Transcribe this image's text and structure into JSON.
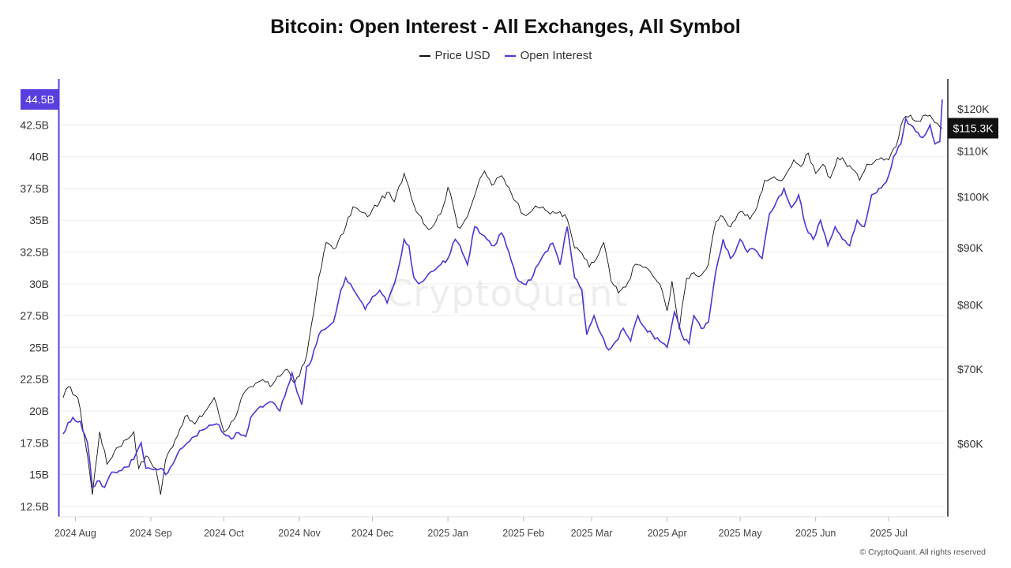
{
  "colors": {
    "price": "#111111",
    "oi": "#4f35d9",
    "grid": "#eeeeee",
    "badge_right": "#111111",
    "badge_left": "#5a3fe0"
  },
  "footer": "© CryptoQuant. All rights reserved",
  "watermark": "CryptoQuant",
  "chart_data": {
    "type": "line",
    "title": "Bitcoin: Open Interest - All Exchanges, All Symbol",
    "legend": {
      "placement": "top-center",
      "entries": [
        "Price USD",
        "Open Interest"
      ]
    },
    "grid": true,
    "x_tick_labels": [
      "2024 Aug",
      "2024 Sep",
      "2024 Oct",
      "2024 Nov",
      "2024 Dec",
      "2025 Jan",
      "2025 Feb",
      "2025 Mar",
      "2025 Apr",
      "2025 May",
      "2025 Jun",
      "2025 Jul"
    ],
    "x_tick_index": [
      5,
      36,
      66,
      97,
      127,
      158,
      189,
      217,
      248,
      278,
      309,
      339
    ],
    "y_left": {
      "label": "",
      "unit": "B",
      "ylim": [
        12.0,
        45.0
      ],
      "ticks": [
        "12.5B",
        "15B",
        "17.5B",
        "20B",
        "22.5B",
        "25B",
        "27.5B",
        "30B",
        "32.5B",
        "35B",
        "37.5B",
        "40B",
        "42.5B"
      ],
      "tick_values": [
        12.5,
        15,
        17.5,
        20,
        22.5,
        25,
        27.5,
        30,
        32.5,
        35,
        37.5,
        40,
        42.5
      ],
      "current_badge": "44.5B"
    },
    "y_right": {
      "label": "",
      "scale": "log",
      "ylim": [
        52000,
        124000
      ],
      "ticks": [
        "$60K",
        "$70K",
        "$80K",
        "$90K",
        "$100K",
        "$110K",
        "$120K"
      ],
      "tick_values": [
        60000,
        70000,
        80000,
        90000,
        100000,
        110000,
        120000
      ],
      "current_badge": "$115.3K"
    },
    "series": [
      {
        "name": "Price USD",
        "axis": "right",
        "anchors": [
          [
            0,
            66000
          ],
          [
            2,
            67500
          ],
          [
            6,
            66000
          ],
          [
            10,
            58500
          ],
          [
            12,
            54000
          ],
          [
            15,
            61500
          ],
          [
            18,
            57500
          ],
          [
            22,
            59500
          ],
          [
            26,
            60500
          ],
          [
            29,
            61500
          ],
          [
            31,
            57000
          ],
          [
            34,
            58500
          ],
          [
            38,
            57000
          ],
          [
            40,
            54000
          ],
          [
            42,
            58000
          ],
          [
            46,
            60500
          ],
          [
            50,
            63500
          ],
          [
            54,
            62500
          ],
          [
            58,
            64000
          ],
          [
            62,
            66000
          ],
          [
            66,
            61500
          ],
          [
            70,
            63000
          ],
          [
            74,
            66500
          ],
          [
            78,
            67500
          ],
          [
            82,
            68500
          ],
          [
            85,
            67500
          ],
          [
            88,
            69000
          ],
          [
            92,
            70000
          ],
          [
            95,
            68000
          ],
          [
            97,
            69000
          ],
          [
            100,
            72000
          ],
          [
            104,
            82000
          ],
          [
            108,
            91000
          ],
          [
            112,
            90000
          ],
          [
            116,
            94000
          ],
          [
            119,
            98000
          ],
          [
            122,
            97000
          ],
          [
            125,
            96000
          ],
          [
            127,
            97500
          ],
          [
            130,
            99000
          ],
          [
            133,
            101000
          ],
          [
            136,
            99000
          ],
          [
            140,
            105000
          ],
          [
            142,
            102000
          ],
          [
            145,
            97000
          ],
          [
            147,
            96000
          ],
          [
            150,
            93500
          ],
          [
            153,
            95000
          ],
          [
            156,
            98000
          ],
          [
            158,
            102000
          ],
          [
            160,
            98500
          ],
          [
            162,
            94000
          ],
          [
            164,
            94500
          ],
          [
            167,
            97500
          ],
          [
            170,
            102000
          ],
          [
            173,
            105500
          ],
          [
            176,
            102500
          ],
          [
            180,
            104500
          ],
          [
            183,
            102000
          ],
          [
            186,
            99000
          ],
          [
            189,
            96500
          ],
          [
            193,
            97500
          ],
          [
            197,
            98000
          ],
          [
            200,
            96500
          ],
          [
            204,
            97000
          ],
          [
            207,
            95500
          ],
          [
            210,
            90000
          ],
          [
            213,
            89000
          ],
          [
            216,
            86500
          ],
          [
            219,
            88000
          ],
          [
            222,
            91000
          ],
          [
            225,
            84000
          ],
          [
            228,
            82000
          ],
          [
            231,
            83000
          ],
          [
            235,
            87000
          ],
          [
            239,
            86500
          ],
          [
            242,
            85000
          ],
          [
            245,
            83500
          ],
          [
            248,
            79000
          ],
          [
            250,
            84000
          ],
          [
            253,
            76000
          ],
          [
            256,
            84500
          ],
          [
            259,
            85500
          ],
          [
            262,
            85000
          ],
          [
            265,
            87000
          ],
          [
            268,
            95000
          ],
          [
            271,
            96000
          ],
          [
            274,
            94000
          ],
          [
            277,
            96500
          ],
          [
            279,
            97000
          ],
          [
            282,
            95500
          ],
          [
            285,
            98000
          ],
          [
            288,
            103500
          ],
          [
            291,
            104000
          ],
          [
            294,
            103500
          ],
          [
            297,
            105000
          ],
          [
            300,
            108000
          ],
          [
            303,
            106500
          ],
          [
            306,
            109500
          ],
          [
            309,
            105000
          ],
          [
            312,
            107000
          ],
          [
            315,
            104000
          ],
          [
            318,
            108500
          ],
          [
            321,
            107500
          ],
          [
            324,
            106000
          ],
          [
            327,
            103500
          ],
          [
            330,
            107000
          ],
          [
            333,
            107500
          ],
          [
            336,
            108500
          ],
          [
            339,
            108000
          ],
          [
            342,
            111000
          ],
          [
            345,
            117500
          ],
          [
            348,
            118500
          ],
          [
            351,
            117000
          ],
          [
            354,
            118500
          ],
          [
            357,
            117500
          ],
          [
            359,
            116500
          ],
          [
            361,
            115300
          ]
        ]
      },
      {
        "name": "Open Interest",
        "axis": "left",
        "anchors": [
          [
            0,
            18.2
          ],
          [
            2,
            19.1
          ],
          [
            4,
            19.5
          ],
          [
            7,
            19.2
          ],
          [
            10,
            17.5
          ],
          [
            12,
            14.0
          ],
          [
            14,
            14.5
          ],
          [
            17,
            14.0
          ],
          [
            20,
            15.2
          ],
          [
            23,
            15.3
          ],
          [
            26,
            15.6
          ],
          [
            29,
            16.2
          ],
          [
            32,
            17.5
          ],
          [
            34,
            15.5
          ],
          [
            37,
            15.4
          ],
          [
            40,
            15.5
          ],
          [
            42,
            15.0
          ],
          [
            45,
            15.8
          ],
          [
            48,
            17.0
          ],
          [
            51,
            17.5
          ],
          [
            54,
            18.0
          ],
          [
            57,
            18.5
          ],
          [
            60,
            18.9
          ],
          [
            63,
            19.0
          ],
          [
            66,
            18.2
          ],
          [
            69,
            17.8
          ],
          [
            72,
            18.3
          ],
          [
            75,
            18.0
          ],
          [
            77,
            19.5
          ],
          [
            80,
            20.2
          ],
          [
            83,
            20.5
          ],
          [
            86,
            20.7
          ],
          [
            89,
            20.0
          ],
          [
            92,
            21.8
          ],
          [
            94,
            23.0
          ],
          [
            96,
            21.5
          ],
          [
            98,
            20.5
          ],
          [
            100,
            23.5
          ],
          [
            102,
            24.0
          ],
          [
            105,
            26.0
          ],
          [
            108,
            26.5
          ],
          [
            111,
            27.0
          ],
          [
            114,
            29.5
          ],
          [
            116,
            30.5
          ],
          [
            118,
            30.0
          ],
          [
            121,
            29.0
          ],
          [
            124,
            28.0
          ],
          [
            127,
            29.0
          ],
          [
            130,
            29.5
          ],
          [
            133,
            28.5
          ],
          [
            136,
            30.0
          ],
          [
            138,
            31.5
          ],
          [
            140,
            33.5
          ],
          [
            142,
            33.0
          ],
          [
            144,
            30.5
          ],
          [
            146,
            30.0
          ],
          [
            149,
            30.5
          ],
          [
            152,
            31.0
          ],
          [
            155,
            31.5
          ],
          [
            158,
            32.0
          ],
          [
            161,
            33.5
          ],
          [
            163,
            33.0
          ],
          [
            166,
            31.5
          ],
          [
            169,
            34.5
          ],
          [
            171,
            34.0
          ],
          [
            174,
            33.5
          ],
          [
            177,
            33.0
          ],
          [
            180,
            34.0
          ],
          [
            183,
            32.5
          ],
          [
            186,
            30.5
          ],
          [
            189,
            30.0
          ],
          [
            192,
            30.3
          ],
          [
            195,
            31.5
          ],
          [
            198,
            32.5
          ],
          [
            201,
            33.2
          ],
          [
            204,
            31.5
          ],
          [
            207,
            34.5
          ],
          [
            210,
            30.5
          ],
          [
            213,
            29.5
          ],
          [
            215,
            26.0
          ],
          [
            218,
            27.5
          ],
          [
            221,
            26.0
          ],
          [
            224,
            24.8
          ],
          [
            227,
            25.5
          ],
          [
            230,
            26.5
          ],
          [
            233,
            25.5
          ],
          [
            236,
            27.5
          ],
          [
            239,
            26.5
          ],
          [
            242,
            26.0
          ],
          [
            245,
            25.5
          ],
          [
            248,
            25.0
          ],
          [
            251,
            27.8
          ],
          [
            254,
            26.0
          ],
          [
            257,
            25.3
          ],
          [
            259,
            27.5
          ],
          [
            262,
            26.5
          ],
          [
            265,
            27.0
          ],
          [
            268,
            31.0
          ],
          [
            271,
            33.5
          ],
          [
            274,
            32.0
          ],
          [
            276,
            32.5
          ],
          [
            278,
            33.5
          ],
          [
            281,
            32.5
          ],
          [
            284,
            32.7
          ],
          [
            287,
            32.0
          ],
          [
            290,
            35.5
          ],
          [
            293,
            36.5
          ],
          [
            296,
            37.5
          ],
          [
            299,
            36.0
          ],
          [
            302,
            37.0
          ],
          [
            305,
            34.5
          ],
          [
            308,
            33.5
          ],
          [
            311,
            35.0
          ],
          [
            314,
            33.0
          ],
          [
            317,
            34.5
          ],
          [
            320,
            33.5
          ],
          [
            323,
            33.0
          ],
          [
            326,
            35.0
          ],
          [
            329,
            34.5
          ],
          [
            332,
            37.0
          ],
          [
            335,
            37.5
          ],
          [
            338,
            38.0
          ],
          [
            341,
            40.0
          ],
          [
            344,
            41.0
          ],
          [
            346,
            43.0
          ],
          [
            348,
            42.5
          ],
          [
            350,
            42.0
          ],
          [
            353,
            41.5
          ],
          [
            356,
            42.5
          ],
          [
            358,
            41.0
          ],
          [
            360,
            41.2
          ],
          [
            361,
            44.5
          ]
        ]
      }
    ]
  }
}
